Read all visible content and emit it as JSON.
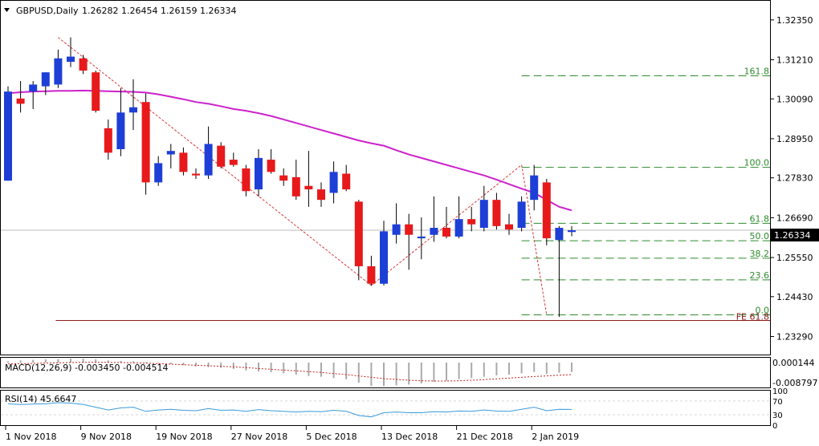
{
  "colors": {
    "bull": "#1e3fd6",
    "bear": "#e8191b",
    "wick": "#000000",
    "ma": "#cc22cc",
    "fib": "#2e8b2e",
    "fe_line": "#8b1a1a",
    "dash_trend": "#d43a3a",
    "price_line": "#bdbdbd",
    "signal": "#cc2222",
    "rsi": "#3a9ad9",
    "histogram": "#aaaaaa",
    "price_label_bg": "#000000",
    "price_label_fg": "#ffffff",
    "frame": "#000000"
  },
  "main_header": {
    "symbol_timeframe": "GBPUSD,Daily",
    "ohlc": "1.26282 1.26454 1.26159 1.26334"
  },
  "current_price_label": "1.26334",
  "chart_data": {
    "type": "candlestick",
    "symbol": "GBPUSD",
    "timeframe": "Daily",
    "ylim": [
      1.2275,
      1.3292
    ],
    "y_ticks": [
      "1.32350",
      "1.31210",
      "1.30090",
      "1.28950",
      "1.27830",
      "1.26690",
      "1.25550",
      "1.24430",
      "1.23290"
    ],
    "x_tick_labels": [
      {
        "label": "1 Nov 2018",
        "index": 0
      },
      {
        "label": "9 Nov 2018",
        "index": 6
      },
      {
        "label": "19 Nov 2018",
        "index": 12
      },
      {
        "label": "27 Nov 2018",
        "index": 18
      },
      {
        "label": "5 Dec 2018",
        "index": 24
      },
      {
        "label": "13 Dec 2018",
        "index": 30
      },
      {
        "label": "21 Dec 2018",
        "index": 36
      },
      {
        "label": "2 Jan 2019",
        "index": 42
      }
    ],
    "candles": [
      {
        "o": 1.2775,
        "h": 1.3045,
        "l": 1.2775,
        "c": 1.303
      },
      {
        "o": 1.301,
        "h": 1.306,
        "l": 1.297,
        "c": 1.2995
      },
      {
        "o": 1.303,
        "h": 1.306,
        "l": 1.298,
        "c": 1.305
      },
      {
        "o": 1.3045,
        "h": 1.3085,
        "l": 1.302,
        "c": 1.3085
      },
      {
        "o": 1.305,
        "h": 1.315,
        "l": 1.304,
        "c": 1.3125
      },
      {
        "o": 1.3115,
        "h": 1.3185,
        "l": 1.31,
        "c": 1.313
      },
      {
        "o": 1.3125,
        "h": 1.3135,
        "l": 1.308,
        "c": 1.309
      },
      {
        "o": 1.3085,
        "h": 1.309,
        "l": 1.297,
        "c": 1.2975
      },
      {
        "o": 1.2925,
        "h": 1.295,
        "l": 1.2835,
        "c": 1.2855
      },
      {
        "o": 1.2865,
        "h": 1.304,
        "l": 1.2845,
        "c": 1.297
      },
      {
        "o": 1.297,
        "h": 1.3065,
        "l": 1.292,
        "c": 1.2985
      },
      {
        "o": 1.3,
        "h": 1.3025,
        "l": 1.2735,
        "c": 1.277
      },
      {
        "o": 1.277,
        "h": 1.2845,
        "l": 1.276,
        "c": 1.2825
      },
      {
        "o": 1.285,
        "h": 1.288,
        "l": 1.281,
        "c": 1.286
      },
      {
        "o": 1.2855,
        "h": 1.287,
        "l": 1.279,
        "c": 1.28
      },
      {
        "o": 1.2795,
        "h": 1.281,
        "l": 1.278,
        "c": 1.279
      },
      {
        "o": 1.279,
        "h": 1.293,
        "l": 1.278,
        "c": 1.288
      },
      {
        "o": 1.2875,
        "h": 1.2885,
        "l": 1.281,
        "c": 1.2815
      },
      {
        "o": 1.2835,
        "h": 1.2855,
        "l": 1.2815,
        "c": 1.282
      },
      {
        "o": 1.281,
        "h": 1.282,
        "l": 1.273,
        "c": 1.2745
      },
      {
        "o": 1.275,
        "h": 1.2865,
        "l": 1.273,
        "c": 1.284
      },
      {
        "o": 1.2835,
        "h": 1.2865,
        "l": 1.2795,
        "c": 1.28
      },
      {
        "o": 1.279,
        "h": 1.281,
        "l": 1.276,
        "c": 1.2775
      },
      {
        "o": 1.2785,
        "h": 1.2835,
        "l": 1.272,
        "c": 1.273
      },
      {
        "o": 1.276,
        "h": 1.286,
        "l": 1.27,
        "c": 1.275
      },
      {
        "o": 1.275,
        "h": 1.277,
        "l": 1.27,
        "c": 1.272
      },
      {
        "o": 1.274,
        "h": 1.283,
        "l": 1.271,
        "c": 1.28
      },
      {
        "o": 1.2795,
        "h": 1.282,
        "l": 1.2745,
        "c": 1.275
      },
      {
        "o": 1.2715,
        "h": 1.272,
        "l": 1.249,
        "c": 1.253
      },
      {
        "o": 1.253,
        "h": 1.256,
        "l": 1.2475,
        "c": 1.248
      },
      {
        "o": 1.248,
        "h": 1.266,
        "l": 1.2475,
        "c": 1.263
      },
      {
        "o": 1.262,
        "h": 1.271,
        "l": 1.2595,
        "c": 1.265
      },
      {
        "o": 1.265,
        "h": 1.268,
        "l": 1.252,
        "c": 1.262
      },
      {
        "o": 1.261,
        "h": 1.267,
        "l": 1.255,
        "c": 1.2615
      },
      {
        "o": 1.262,
        "h": 1.273,
        "l": 1.26,
        "c": 1.264
      },
      {
        "o": 1.264,
        "h": 1.27,
        "l": 1.261,
        "c": 1.2615
      },
      {
        "o": 1.2615,
        "h": 1.273,
        "l": 1.261,
        "c": 1.2665
      },
      {
        "o": 1.2665,
        "h": 1.27,
        "l": 1.263,
        "c": 1.265
      },
      {
        "o": 1.264,
        "h": 1.276,
        "l": 1.263,
        "c": 1.272
      },
      {
        "o": 1.272,
        "h": 1.274,
        "l": 1.2635,
        "c": 1.2645
      },
      {
        "o": 1.265,
        "h": 1.268,
        "l": 1.262,
        "c": 1.2635
      },
      {
        "o": 1.264,
        "h": 1.273,
        "l": 1.263,
        "c": 1.2715
      },
      {
        "o": 1.272,
        "h": 1.282,
        "l": 1.269,
        "c": 1.279
      },
      {
        "o": 1.277,
        "h": 1.278,
        "l": 1.259,
        "c": 1.261
      },
      {
        "o": 1.2605,
        "h": 1.2645,
        "l": 1.2385,
        "c": 1.264
      },
      {
        "o": 1.2628,
        "h": 1.2645,
        "l": 1.2616,
        "c": 1.2633
      }
    ],
    "moving_average": {
      "values": [
        1.3025,
        1.3028,
        1.303,
        1.3031,
        1.3032,
        1.3032,
        1.3033,
        1.3032,
        1.3031,
        1.303,
        1.3029,
        1.3027,
        1.3022,
        1.3015,
        1.3008,
        1.3,
        1.2995,
        1.2988,
        1.298,
        1.2975,
        1.2968,
        1.296,
        1.295,
        1.294,
        1.293,
        1.292,
        1.291,
        1.29,
        1.289,
        1.2882,
        1.2875,
        1.2862,
        1.285,
        1.284,
        1.283,
        1.282,
        1.281,
        1.28,
        1.279,
        1.2778,
        1.2765,
        1.2752,
        1.274,
        1.272,
        1.27,
        1.269
      ],
      "offset": 0
    },
    "fibonacci": {
      "levels": [
        {
          "label": "161.8",
          "price": 1.3075
        },
        {
          "label": "100.0",
          "price": 1.2813
        },
        {
          "label": "61.8",
          "price": 1.2653
        },
        {
          "label": "50.0",
          "price": 1.2603
        },
        {
          "label": "38.2",
          "price": 1.2553
        },
        {
          "label": "23.6",
          "price": 1.2491
        },
        {
          "label": "0.0",
          "price": 1.2391
        }
      ],
      "fe_label": "FE 61.8",
      "fe_price": 1.2375,
      "start_index": 41
    },
    "trend_lines": [
      {
        "from": [
          4,
          1.3185
        ],
        "to": [
          29,
          1.2475
        ]
      },
      {
        "from": [
          29,
          1.2475
        ],
        "to": [
          41,
          1.282
        ]
      },
      {
        "from": [
          41,
          1.282
        ],
        "to": [
          43,
          1.2391
        ]
      }
    ],
    "macd": {
      "label": "MACD(12,26,9) -0.003450 -0.004514",
      "y_ticks": [
        "0.000144",
        "-0.008797"
      ],
      "ylim": [
        -0.0093,
        0.0018
      ],
      "histogram": [
        0.0005,
        0.0008,
        0.001,
        0.0012,
        0.0013,
        0.0015,
        0.0015,
        0.0012,
        0.0008,
        0.0006,
        0.0005,
        0.0002,
        -0.0003,
        -0.0006,
        -0.001,
        -0.0014,
        -0.0017,
        -0.002,
        -0.0024,
        -0.0029,
        -0.0033,
        -0.0036,
        -0.004,
        -0.0045,
        -0.005,
        -0.0053,
        -0.0058,
        -0.0063,
        -0.0075,
        -0.0087,
        -0.0088,
        -0.0085,
        -0.0082,
        -0.0078,
        -0.0072,
        -0.0068,
        -0.0062,
        -0.0058,
        -0.0053,
        -0.0048,
        -0.0045,
        -0.004,
        -0.0035,
        -0.0043,
        -0.0038,
        -0.0035
      ],
      "signal": [
        -0.0005,
        -0.0004,
        -0.0003,
        -0.0002,
        -0.0001,
        0.0,
        0.0001,
        0.0001,
        0.0001,
        0.0,
        -0.0001,
        -0.0002,
        -0.0004,
        -0.0006,
        -0.0008,
        -0.001,
        -0.0012,
        -0.0014,
        -0.0016,
        -0.0019,
        -0.0022,
        -0.0025,
        -0.0028,
        -0.0031,
        -0.0034,
        -0.0037,
        -0.0041,
        -0.0045,
        -0.005,
        -0.0055,
        -0.006,
        -0.0063,
        -0.0066,
        -0.0068,
        -0.0069,
        -0.0069,
        -0.0068,
        -0.0066,
        -0.0064,
        -0.0061,
        -0.0058,
        -0.0055,
        -0.0052,
        -0.005,
        -0.0047,
        -0.0045
      ]
    },
    "rsi": {
      "label": "RSI(14) 45.6647",
      "y_ticks": [
        "100",
        "70",
        "30",
        "0"
      ],
      "ylim": [
        0,
        100
      ],
      "values": [
        62,
        60,
        61,
        62,
        65,
        64,
        60,
        52,
        44,
        50,
        52,
        40,
        44,
        46,
        43,
        42,
        48,
        43,
        44,
        40,
        45,
        42,
        40,
        38,
        40,
        39,
        43,
        40,
        28,
        24,
        36,
        38,
        36,
        36,
        39,
        38,
        41,
        40,
        44,
        41,
        40,
        46,
        52,
        42,
        46,
        45.7
      ]
    }
  }
}
